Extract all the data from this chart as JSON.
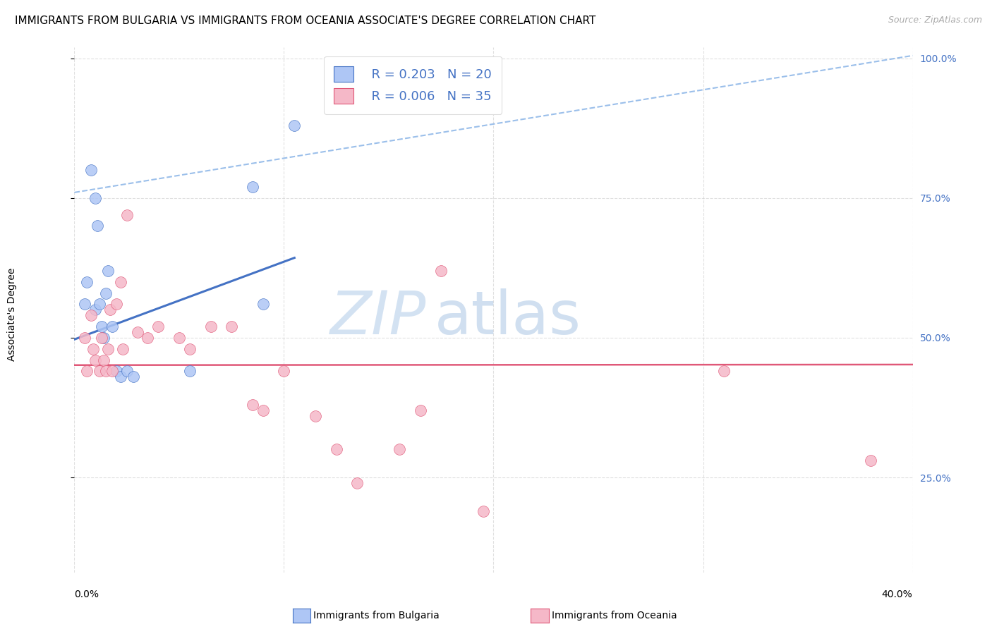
{
  "title": "IMMIGRANTS FROM BULGARIA VS IMMIGRANTS FROM OCEANIA ASSOCIATE'S DEGREE CORRELATION CHART",
  "source": "Source: ZipAtlas.com",
  "ylabel": "Associate's Degree",
  "xlim": [
    0.0,
    0.4
  ],
  "ylim": [
    0.08,
    1.02
  ],
  "legend_R1": "R = 0.203",
  "legend_N1": "N = 20",
  "legend_R2": "R = 0.006",
  "legend_N2": "N = 35",
  "color_bulgaria": "#aec6f5",
  "color_oceania": "#f5b8c8",
  "color_trendline_bulgaria": "#4472c4",
  "color_trendline_oceania": "#e05878",
  "color_dashed": "#90b8e8",
  "title_fontsize": 11,
  "source_fontsize": 9,
  "axis_label_fontsize": 10,
  "tick_label_fontsize": 10,
  "legend_fontsize": 13,
  "watermark_zip": "ZIP",
  "watermark_atlas": "atlas",
  "watermark_color_zip": "#d5e8f5",
  "watermark_color_atlas": "#c8dff0",
  "bulgaria_x": [
    0.005,
    0.006,
    0.008,
    0.01,
    0.01,
    0.011,
    0.012,
    0.013,
    0.014,
    0.015,
    0.016,
    0.018,
    0.02,
    0.022,
    0.025,
    0.028,
    0.055,
    0.085,
    0.09,
    0.105
  ],
  "bulgaria_y": [
    0.56,
    0.6,
    0.8,
    0.55,
    0.75,
    0.7,
    0.56,
    0.52,
    0.5,
    0.58,
    0.62,
    0.52,
    0.44,
    0.43,
    0.44,
    0.43,
    0.44,
    0.77,
    0.56,
    0.88
  ],
  "oceania_x": [
    0.005,
    0.006,
    0.008,
    0.009,
    0.01,
    0.012,
    0.013,
    0.014,
    0.015,
    0.016,
    0.017,
    0.018,
    0.02,
    0.022,
    0.023,
    0.025,
    0.03,
    0.035,
    0.04,
    0.05,
    0.055,
    0.065,
    0.075,
    0.085,
    0.09,
    0.1,
    0.115,
    0.125,
    0.135,
    0.155,
    0.165,
    0.175,
    0.195,
    0.31,
    0.38
  ],
  "oceania_y": [
    0.5,
    0.44,
    0.54,
    0.48,
    0.46,
    0.44,
    0.5,
    0.46,
    0.44,
    0.48,
    0.55,
    0.44,
    0.56,
    0.6,
    0.48,
    0.72,
    0.51,
    0.5,
    0.52,
    0.5,
    0.48,
    0.52,
    0.52,
    0.38,
    0.37,
    0.44,
    0.36,
    0.3,
    0.24,
    0.3,
    0.37,
    0.62,
    0.19,
    0.44,
    0.28
  ],
  "grid_color": "#cccccc",
  "background_color": "#ffffff",
  "trendline_bulgaria_x0": 0.0,
  "trendline_bulgaria_x1": 0.105,
  "trendline_bulgaria_y0": 0.497,
  "trendline_bulgaria_y1": 0.643,
  "trendline_oceania_x0": 0.0,
  "trendline_oceania_x1": 0.4,
  "trendline_oceania_y0": 0.451,
  "trendline_oceania_y1": 0.452,
  "trendline_dashed_x0": 0.0,
  "trendline_dashed_x1": 0.4,
  "trendline_dashed_y0": 0.76,
  "trendline_dashed_y1": 1.005
}
